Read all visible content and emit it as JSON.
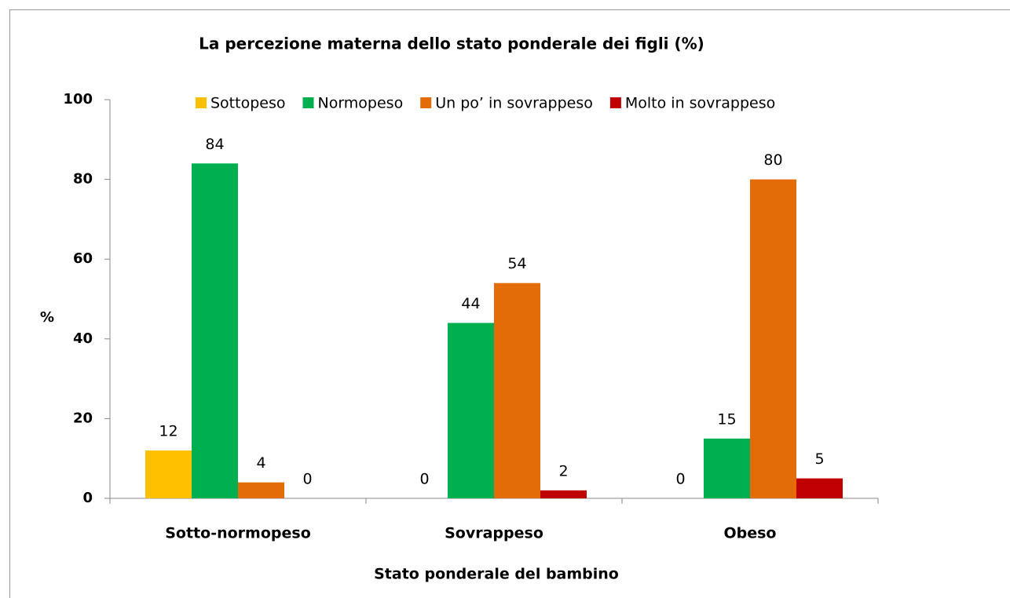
{
  "chart_data": {
    "type": "bar",
    "title": "La percezione materna dello stato ponderale dei figli (%)",
    "x_label": "Stato ponderale  del bambino",
    "y_label": "%",
    "categories": [
      "Sotto-normopeso",
      "Sovrappeso",
      "Obeso"
    ],
    "series": [
      {
        "name": "Sottopeso",
        "color": "#FFC000",
        "values": [
          12,
          0,
          0
        ]
      },
      {
        "name": "Normopeso",
        "color": "#00B050",
        "values": [
          84,
          44,
          15
        ]
      },
      {
        "name": "Un po’ in sovrappeso",
        "color": "#E36C09",
        "values": [
          4,
          54,
          80
        ]
      },
      {
        "name": "Molto in sovrappeso",
        "color": "#C00000",
        "values": [
          0,
          2,
          5
        ]
      }
    ],
    "ylim": [
      0,
      100
    ],
    "yticks": [
      0,
      20,
      40,
      60,
      80,
      100
    ],
    "legend": "top"
  }
}
